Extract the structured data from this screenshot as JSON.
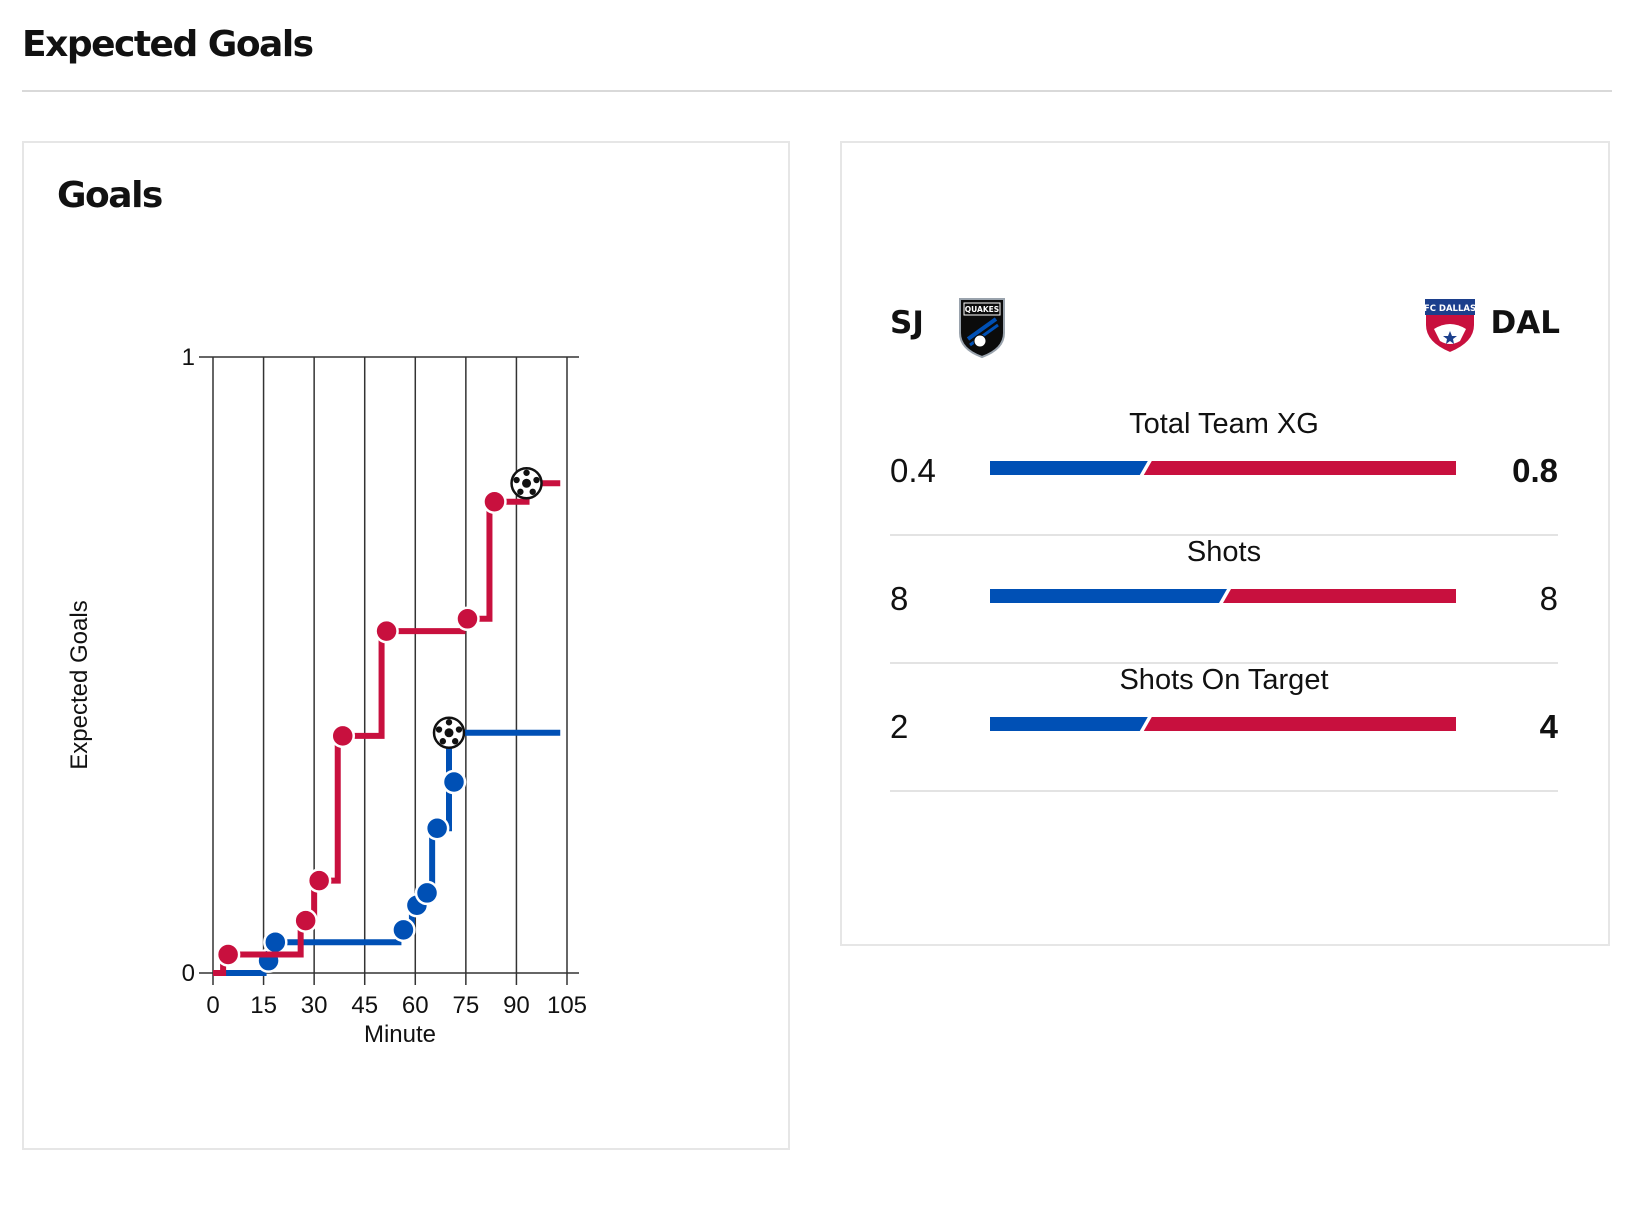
{
  "page": {
    "title": "Expected Goals"
  },
  "goals_card": {
    "title": "Goals"
  },
  "colors": {
    "home": "#0050B5",
    "away": "#C8103E",
    "grid": "#333333"
  },
  "chart_data": {
    "type": "line",
    "step": true,
    "xlabel": "Minute",
    "ylabel": "Expected Goals",
    "xlim": [
      0,
      105
    ],
    "ylim": [
      0,
      1
    ],
    "x_ticks": [
      0,
      15,
      30,
      45,
      60,
      75,
      90,
      105
    ],
    "y_ticks": [
      0,
      1
    ],
    "grid": "vertical",
    "series": [
      {
        "team": "SJ",
        "color": "#0050B5",
        "end_minute": 103,
        "shots": [
          {
            "minute": 15,
            "cum_xg": 0.02
          },
          {
            "minute": 17,
            "cum_xg": 0.05
          },
          {
            "minute": 55,
            "cum_xg": 0.07
          },
          {
            "minute": 59,
            "cum_xg": 0.11
          },
          {
            "minute": 62,
            "cum_xg": 0.13
          },
          {
            "minute": 65,
            "cum_xg": 0.235
          },
          {
            "minute": 70,
            "cum_xg": 0.31
          },
          {
            "minute": 70,
            "cum_xg": 0.39,
            "goal": true
          }
        ]
      },
      {
        "team": "DAL",
        "color": "#C8103E",
        "end_minute": 103,
        "shots": [
          {
            "minute": 3,
            "cum_xg": 0.03
          },
          {
            "minute": 26,
            "cum_xg": 0.085
          },
          {
            "minute": 30,
            "cum_xg": 0.15
          },
          {
            "minute": 37,
            "cum_xg": 0.385
          },
          {
            "minute": 50,
            "cum_xg": 0.555
          },
          {
            "minute": 74,
            "cum_xg": 0.575
          },
          {
            "minute": 82,
            "cum_xg": 0.765
          },
          {
            "minute": 93,
            "cum_xg": 0.795,
            "goal": true
          }
        ]
      }
    ]
  },
  "comparison": {
    "home": {
      "abbr": "SJ",
      "logo_text": "QUAKES"
    },
    "away": {
      "abbr": "DAL",
      "logo_text": "FC DALLAS"
    },
    "stats": [
      {
        "label": "Total Team XG",
        "home": "0.4",
        "away": "0.8",
        "home_share": 0.33,
        "leader": "away"
      },
      {
        "label": "Shots",
        "home": "8",
        "away": "8",
        "home_share": 0.5,
        "leader": "none"
      },
      {
        "label": "Shots On Target",
        "home": "2",
        "away": "4",
        "home_share": 0.33,
        "leader": "away"
      }
    ]
  }
}
